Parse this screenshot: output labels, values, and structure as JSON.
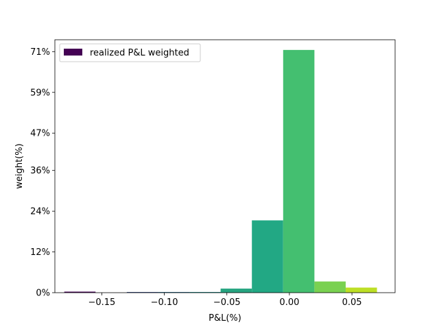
{
  "chart_data": {
    "type": "bar",
    "title": "",
    "xlabel": "P&L(%)",
    "ylabel": "weight(%)",
    "xlim": [
      -0.1875,
      0.0845
    ],
    "ylim": [
      0,
      74.5
    ],
    "x_ticks": [
      -0.15,
      -0.1,
      -0.05,
      0.0,
      0.05
    ],
    "x_tick_labels": [
      "−0.15",
      "−0.10",
      "−0.05",
      "0.00",
      "0.05"
    ],
    "y_ticks": [
      0,
      12,
      24,
      36,
      47,
      59,
      71
    ],
    "y_tick_labels": [
      "0%",
      "12%",
      "24%",
      "36%",
      "47%",
      "59%",
      "71%"
    ],
    "bins": [
      {
        "x0": -0.18,
        "x1": -0.155,
        "value": 0.3,
        "color": "#440154"
      },
      {
        "x0": -0.155,
        "x1": -0.13,
        "value": 0.0,
        "color": "#472c7a"
      },
      {
        "x0": -0.13,
        "x1": -0.105,
        "value": 0.2,
        "color": "#3b518b"
      },
      {
        "x0": -0.105,
        "x1": -0.08,
        "value": 0.2,
        "color": "#2c718e"
      },
      {
        "x0": -0.08,
        "x1": -0.055,
        "value": 0.2,
        "color": "#21908d"
      },
      {
        "x0": -0.055,
        "x1": -0.03,
        "value": 1.2,
        "color": "#27a581"
      },
      {
        "x0": -0.03,
        "x1": -0.005,
        "value": 21.3,
        "color": "#22a884"
      },
      {
        "x0": -0.005,
        "x1": 0.02,
        "value": 71.5,
        "color": "#44bf70"
      },
      {
        "x0": 0.02,
        "x1": 0.045,
        "value": 3.3,
        "color": "#7ad151"
      },
      {
        "x0": 0.045,
        "x1": 0.07,
        "value": 1.5,
        "color": "#bddf26"
      }
    ],
    "legend": {
      "label": "realized P&L weighted",
      "color": "#440154",
      "position": "upper left"
    },
    "grid": false
  }
}
